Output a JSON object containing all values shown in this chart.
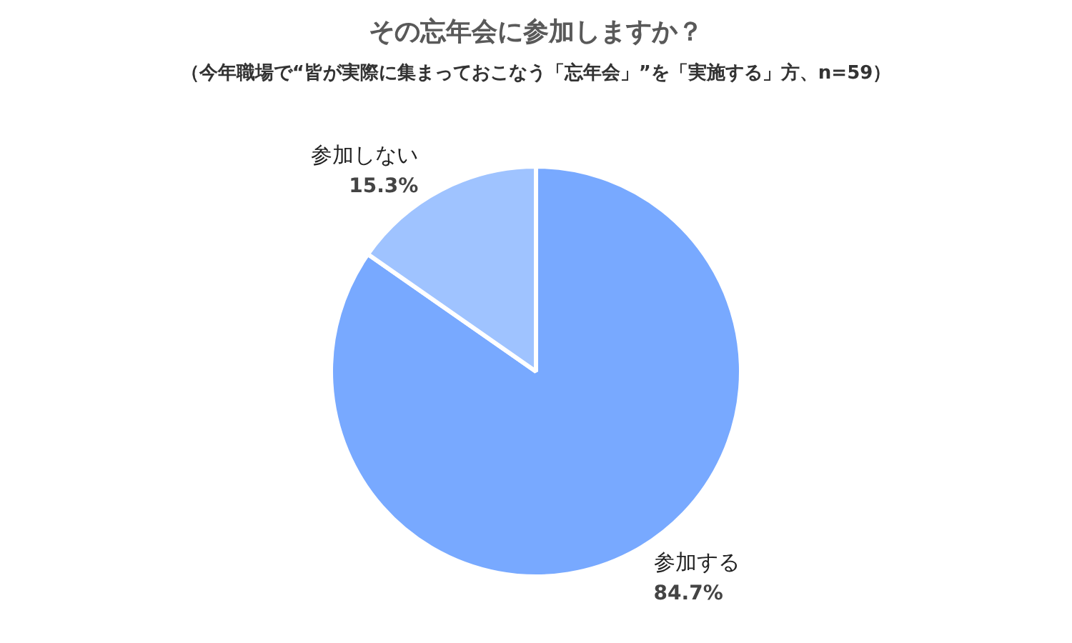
{
  "chart_data": {
    "type": "pie",
    "title": "その忘年会に参加しますか？",
    "subtitle": "（今年職場で“皆が実際に集まっておこなう「忘年会」”を「実施する」方、n=59）",
    "categories": [
      "参加する",
      "参加しない"
    ],
    "values": [
      84.7,
      15.3
    ],
    "colors": [
      "#78a9ff",
      "#9fc3ff"
    ],
    "value_labels": [
      "84.7%",
      "15.3%"
    ],
    "legend": false
  }
}
